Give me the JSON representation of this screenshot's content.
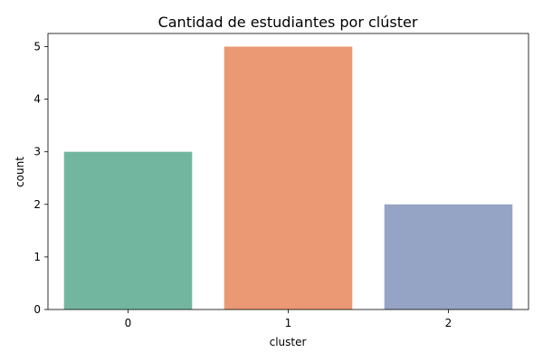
{
  "chart_data": {
    "type": "bar",
    "title": "Cantidad de estudiantes por clúster",
    "xlabel": "cluster",
    "ylabel": "count",
    "categories": [
      "0",
      "1",
      "2"
    ],
    "values": [
      3,
      5,
      2
    ],
    "colors": [
      "#73b6a0",
      "#eb9874",
      "#95a4c5"
    ],
    "ylim": [
      0,
      5.25
    ],
    "yticks": [
      0,
      1,
      2,
      3,
      4,
      5
    ],
    "grid": false,
    "legend": "none"
  }
}
